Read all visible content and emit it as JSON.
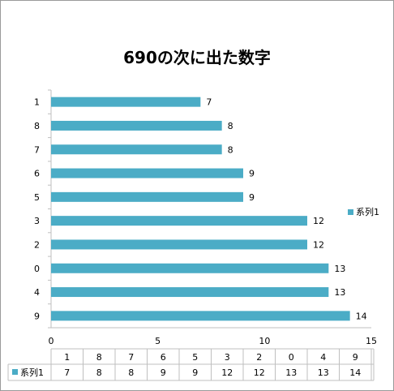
{
  "chart_data": {
    "type": "bar",
    "orientation": "horizontal",
    "title": "690の次に出た数字",
    "categories": [
      "9",
      "4",
      "0",
      "2",
      "3",
      "5",
      "6",
      "7",
      "8",
      "1"
    ],
    "series": [
      {
        "name": "系列1",
        "values": [
          14,
          13,
          13,
          12,
          12,
          9,
          9,
          8,
          8,
          7
        ]
      }
    ],
    "xlim": [
      0,
      15
    ],
    "x_ticks": [
      "0",
      "5",
      "10",
      "15"
    ],
    "grid": false,
    "legend": "right",
    "data_table": true,
    "colors": {
      "series": "#4bacc6",
      "axis": "#bfbfbf",
      "border": "#9a9a9a"
    }
  }
}
